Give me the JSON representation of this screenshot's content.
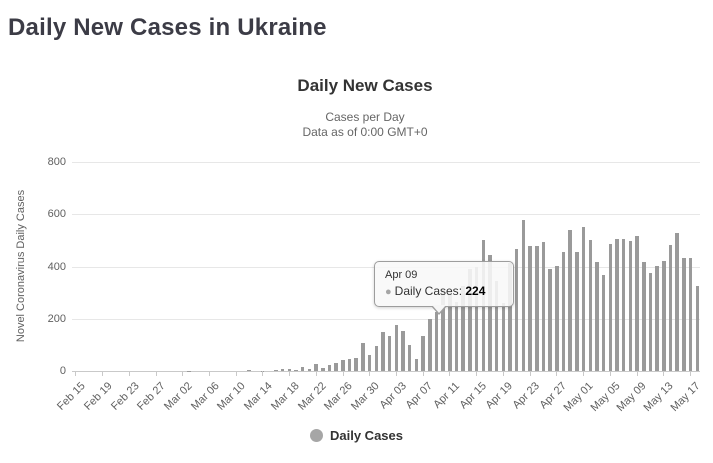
{
  "page": {
    "title": "Daily New Cases in Ukraine"
  },
  "chart": {
    "title": "Daily New Cases",
    "subtitle_line1": "Cases per Day",
    "subtitle_line2": "Data as of 0:00 GMT+0",
    "y_axis_title": "Novel Coronavirus Daily Cases",
    "legend_label": "Daily Cases",
    "colors": {
      "bar": "#9a9a9a",
      "grid": "#e7e7e7",
      "axis_text": "#606060",
      "title_text": "#3c3c46"
    }
  },
  "tooltip": {
    "date": "Apr 09",
    "series_label": "Daily Cases",
    "dot": "●",
    "value": "224"
  },
  "chart_data": {
    "type": "bar",
    "title": "Daily New Cases",
    "subtitle": "Cases per Day — Data as of 0:00 GMT+0",
    "xlabel": "",
    "ylabel": "Novel Coronavirus Daily Cases",
    "series_name": "Daily Cases",
    "ylim": [
      0,
      800
    ],
    "y_ticks": [
      0,
      200,
      400,
      600,
      800
    ],
    "x_tick_step": 4,
    "grid": true,
    "legend_position": "bottom",
    "bar_color": "#9a9a9a",
    "highlighted_point": {
      "x": "Apr 09",
      "value": 224
    },
    "x": [
      "Feb 15",
      "Feb 16",
      "Feb 17",
      "Feb 18",
      "Feb 19",
      "Feb 20",
      "Feb 21",
      "Feb 22",
      "Feb 23",
      "Feb 24",
      "Feb 25",
      "Feb 26",
      "Feb 27",
      "Feb 28",
      "Feb 29",
      "Mar 01",
      "Mar 02",
      "Mar 03",
      "Mar 04",
      "Mar 05",
      "Mar 06",
      "Mar 07",
      "Mar 08",
      "Mar 09",
      "Mar 10",
      "Mar 11",
      "Mar 12",
      "Mar 13",
      "Mar 14",
      "Mar 15",
      "Mar 16",
      "Mar 17",
      "Mar 18",
      "Mar 19",
      "Mar 20",
      "Mar 21",
      "Mar 22",
      "Mar 23",
      "Mar 24",
      "Mar 25",
      "Mar 26",
      "Mar 27",
      "Mar 28",
      "Mar 29",
      "Mar 30",
      "Mar 31",
      "Apr 01",
      "Apr 02",
      "Apr 03",
      "Apr 04",
      "Apr 05",
      "Apr 06",
      "Apr 07",
      "Apr 08",
      "Apr 09",
      "Apr 10",
      "Apr 11",
      "Apr 12",
      "Apr 13",
      "Apr 14",
      "Apr 15",
      "Apr 16",
      "Apr 17",
      "Apr 18",
      "Apr 19",
      "Apr 20",
      "Apr 21",
      "Apr 22",
      "Apr 23",
      "Apr 24",
      "Apr 25",
      "Apr 26",
      "Apr 27",
      "Apr 28",
      "Apr 29",
      "Apr 30",
      "May 01",
      "May 02",
      "May 03",
      "May 04",
      "May 05",
      "May 06",
      "May 07",
      "May 08",
      "May 09",
      "May 10",
      "May 11",
      "May 12",
      "May 13",
      "May 14",
      "May 15",
      "May 16",
      "May 17",
      "May 18"
    ],
    "values": [
      0,
      0,
      0,
      0,
      0,
      0,
      0,
      0,
      0,
      0,
      0,
      0,
      0,
      0,
      0,
      0,
      0,
      1,
      0,
      0,
      0,
      0,
      0,
      0,
      0,
      0,
      2,
      0,
      1,
      0,
      4,
      7,
      7,
      5,
      15,
      6,
      26,
      11,
      24,
      32,
      43,
      46,
      48,
      109,
      62,
      97,
      149,
      134,
      175,
      153,
      100,
      45,
      135,
      200,
      224,
      311,
      308,
      266,
      325,
      392,
      397,
      501,
      444,
      343,
      261,
      415,
      467,
      578,
      477,
      478,
      492,
      392,
      401,
      456,
      540,
      455,
      550,
      502,
      418,
      366,
      487,
      507,
      504,
      498,
      515,
      416,
      375,
      402,
      422,
      483,
      528,
      433,
      433,
      325
    ]
  }
}
